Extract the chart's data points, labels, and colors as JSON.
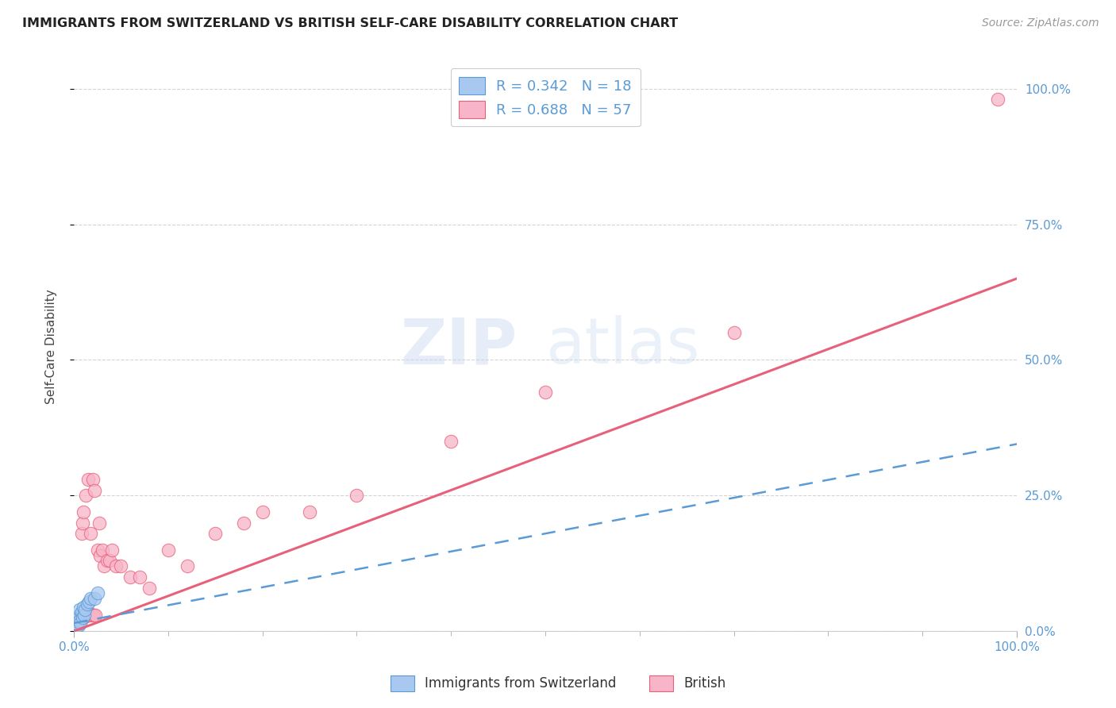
{
  "title": "IMMIGRANTS FROM SWITZERLAND VS BRITISH SELF-CARE DISABILITY CORRELATION CHART",
  "source": "Source: ZipAtlas.com",
  "ylabel": "Self-Care Disability",
  "xlabel": "",
  "xlim": [
    0.0,
    1.0
  ],
  "ylim": [
    0.0,
    1.05
  ],
  "blue_color": "#a8c8f0",
  "pink_color": "#f8b4c8",
  "blue_line_color": "#5b9bd5",
  "pink_line_color": "#e8607a",
  "R_blue": 0.342,
  "N_blue": 18,
  "R_pink": 0.688,
  "N_pink": 57,
  "watermark_zip": "ZIP",
  "watermark_atlas": "atlas",
  "background_color": "#ffffff",
  "grid_color": "#d0d0d0",
  "ytick_right_positions": [
    0.0,
    0.25,
    0.5,
    0.75,
    1.0
  ],
  "ytick_right_labels": [
    "0.0%",
    "25.0%",
    "50.0%",
    "75.0%",
    "100.0%"
  ],
  "pink_line_intercept": 0.0,
  "pink_line_slope": 0.65,
  "blue_line_intercept": 0.015,
  "blue_line_slope": 0.33,
  "blue_scatter_x": [
    0.002,
    0.003,
    0.004,
    0.005,
    0.005,
    0.006,
    0.006,
    0.007,
    0.008,
    0.009,
    0.01,
    0.011,
    0.012,
    0.014,
    0.016,
    0.018,
    0.022,
    0.025
  ],
  "blue_scatter_y": [
    0.02,
    0.015,
    0.025,
    0.01,
    0.03,
    0.02,
    0.04,
    0.015,
    0.035,
    0.025,
    0.045,
    0.03,
    0.04,
    0.05,
    0.055,
    0.06,
    0.06,
    0.07
  ],
  "pink_scatter_x": [
    0.001,
    0.001,
    0.002,
    0.002,
    0.003,
    0.003,
    0.004,
    0.004,
    0.005,
    0.005,
    0.006,
    0.007,
    0.007,
    0.008,
    0.008,
    0.009,
    0.01,
    0.01,
    0.011,
    0.012,
    0.013,
    0.013,
    0.014,
    0.015,
    0.015,
    0.016,
    0.017,
    0.018,
    0.019,
    0.02,
    0.021,
    0.022,
    0.023,
    0.025,
    0.027,
    0.028,
    0.03,
    0.032,
    0.035,
    0.038,
    0.04,
    0.045,
    0.05,
    0.06,
    0.07,
    0.08,
    0.1,
    0.12,
    0.15,
    0.18,
    0.2,
    0.25,
    0.3,
    0.4,
    0.5,
    0.7,
    0.98
  ],
  "pink_scatter_y": [
    0.005,
    0.008,
    0.008,
    0.012,
    0.01,
    0.015,
    0.012,
    0.015,
    0.015,
    0.018,
    0.018,
    0.02,
    0.025,
    0.025,
    0.18,
    0.2,
    0.025,
    0.22,
    0.03,
    0.03,
    0.03,
    0.25,
    0.03,
    0.03,
    0.28,
    0.03,
    0.032,
    0.18,
    0.03,
    0.28,
    0.03,
    0.26,
    0.03,
    0.15,
    0.2,
    0.14,
    0.15,
    0.12,
    0.13,
    0.13,
    0.15,
    0.12,
    0.12,
    0.1,
    0.1,
    0.08,
    0.15,
    0.12,
    0.18,
    0.2,
    0.22,
    0.22,
    0.25,
    0.35,
    0.44,
    0.55,
    0.98
  ]
}
